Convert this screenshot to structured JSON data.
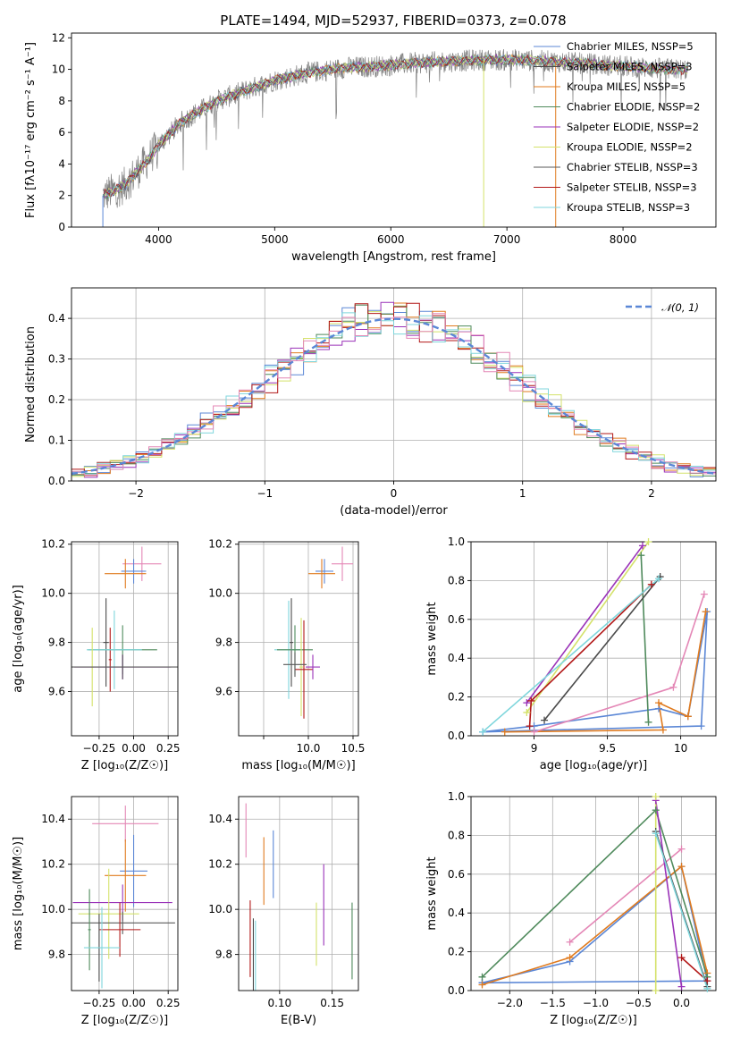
{
  "figure_title": "PLATE=1494, MJD=52937, FIBERID=0373, z=0.078",
  "series_styles": [
    {
      "name": "Chabrier MILES",
      "color": "#5b87d6"
    },
    {
      "name": "Salpeter MILES",
      "color": "#4a4a4a"
    },
    {
      "name": "Kroupa MILES",
      "color": "#e07b1f"
    },
    {
      "name": "Chabrier ELODIE",
      "color": "#4f8a5c"
    },
    {
      "name": "Salpeter ELODIE",
      "color": "#9a32b8"
    },
    {
      "name": "Kroupa ELODIE",
      "color": "#d4e26a"
    },
    {
      "name": "Chabrier STELIB",
      "color": "#5a5a5a"
    },
    {
      "name": "Salpeter STELIB",
      "color": "#b21818"
    },
    {
      "name": "Kroupa STELIB",
      "color": "#7fd6dc"
    },
    {
      "name": "extra",
      "color": "#e487b6"
    }
  ],
  "chart_data": [
    {
      "id": "spectrum",
      "type": "line",
      "xlabel": "wavelength [Angstrom, rest frame]",
      "ylabel": "Flux [fλ10⁻¹⁷ erg cm⁻² s⁻¹ A⁻¹]",
      "xlim": [
        3250,
        8800
      ],
      "ylim": [
        0,
        12.3
      ],
      "xticks": [
        4000,
        5000,
        6000,
        7000,
        8000
      ],
      "yticks": [
        0,
        2,
        4,
        6,
        8,
        10,
        12
      ],
      "grid": false,
      "legend_position": "top-right",
      "legend": [
        "Chabrier MILES, NSSP=5",
        "Salpeter MILES, NSSP=3",
        "Kroupa MILES, NSSP=5",
        "Chabrier ELODIE, NSSP=2",
        "Salpeter ELODIE, NSSP=2",
        "Kroupa ELODIE, NSSP=2",
        "Chabrier STELIB, NSSP=3",
        "Salpeter STELIB, NSSP=3",
        "Kroupa STELIB, NSSP=3"
      ],
      "continuum": {
        "x": [
          3520,
          3700,
          3900,
          4000,
          4200,
          4500,
          4800,
          5000,
          5300,
          5600,
          5900,
          6200,
          6500,
          6800,
          7100,
          7400,
          7600,
          7800,
          8000,
          8200,
          8400,
          8560
        ],
        "y": [
          2.0,
          2.6,
          4.2,
          5.2,
          6.7,
          8.0,
          8.8,
          9.3,
          9.8,
          10.1,
          10.2,
          10.4,
          10.5,
          10.6,
          10.6,
          10.5,
          10.4,
          10.3,
          10.2,
          10.1,
          10.0,
          10.0
        ]
      }
    },
    {
      "id": "residuals",
      "type": "line",
      "xlabel": "(data-model)/error",
      "ylabel": "Normed distribution",
      "xlim": [
        -2.5,
        2.5
      ],
      "ylim": [
        0,
        0.475
      ],
      "xticks": [
        -2,
        -1,
        0,
        1,
        2
      ],
      "yticks": [
        0.0,
        0.1,
        0.2,
        0.3,
        0.4
      ],
      "grid": true,
      "legend_position": "top-right",
      "legend": [
        "𝒩(0, 1)"
      ],
      "bins": [
        -2.5,
        -2.4,
        -2.3,
        -2.2,
        -2.1,
        -2.0,
        -1.9,
        -1.8,
        -1.7,
        -1.6,
        -1.5,
        -1.4,
        -1.3,
        -1.2,
        -1.1,
        -1.0,
        -0.9,
        -0.8,
        -0.7,
        -0.6,
        -0.5,
        -0.4,
        -0.3,
        -0.2,
        -0.1,
        0.0,
        0.1,
        0.2,
        0.3,
        0.4,
        0.5,
        0.6,
        0.7,
        0.8,
        0.9,
        1.0,
        1.1,
        1.2,
        1.3,
        1.4,
        1.5,
        1.6,
        1.7,
        1.8,
        1.9,
        2.0,
        2.1,
        2.2,
        2.3,
        2.4
      ]
    },
    {
      "id": "age-vs-Z",
      "type": "scatter",
      "xlabel": "Z [log₁₀(Z/Z☉)]",
      "ylabel": "age  [log₁₀(age/yr)]",
      "xlim": [
        -0.45,
        0.32
      ],
      "ylim": [
        9.42,
        10.21
      ],
      "xticks": [
        -0.25,
        0.0,
        0.25
      ],
      "xticklabels": [
        "−0.25",
        "0.00",
        "0.25"
      ],
      "yticks": [
        9.6,
        9.8,
        10.0,
        10.2
      ],
      "grid": true,
      "points": [
        {
          "s": 9,
          "x": 0.06,
          "y": 10.12,
          "xerr": 0.14,
          "yerr": 0.07
        },
        {
          "s": 0,
          "x": 0.0,
          "y": 10.09,
          "xerr": 0.09,
          "yerr": 0.05
        },
        {
          "s": 2,
          "x": -0.06,
          "y": 10.08,
          "xerr": 0.15,
          "yerr": 0.06
        },
        {
          "s": 1,
          "x": -0.2,
          "y": 9.8,
          "xerr": 0.02,
          "yerr": 0.18
        },
        {
          "s": 7,
          "x": -0.17,
          "y": 9.73,
          "xerr": 0.01,
          "yerr": 0.13
        },
        {
          "s": 3,
          "x": -0.08,
          "y": 9.77,
          "xerr": 0.25,
          "yerr": 0.1
        },
        {
          "s": 8,
          "x": -0.14,
          "y": 9.77,
          "xerr": 0.2,
          "yerr": 0.16
        },
        {
          "s": 5,
          "x": -0.3,
          "y": 9.7,
          "xerr": 0.01,
          "yerr": 0.16
        },
        {
          "s": 4,
          "x": -0.08,
          "y": 9.7,
          "xerr": 0.35,
          "yerr": 0.05
        },
        {
          "s": 6,
          "x": -0.08,
          "y": 9.7,
          "xerr": 0.44,
          "yerr": 0.05
        }
      ]
    },
    {
      "id": "age-vs-mass",
      "type": "scatter",
      "xlabel": "mass [log₁₀(M/M☉)]",
      "ylabel": "",
      "xlim": [
        9.22,
        10.56
      ],
      "ylim": [
        9.42,
        10.21
      ],
      "xticks": [
        9.5,
        10.0,
        10.5
      ],
      "xticklabels": [
        "",
        "10.0",
        "10.5"
      ],
      "yticks": [
        9.6,
        9.8,
        10.0,
        10.2
      ],
      "grid": true,
      "points": [
        {
          "s": 9,
          "x": 10.38,
          "y": 10.12,
          "xerr": 0.12,
          "yerr": 0.07
        },
        {
          "s": 0,
          "x": 10.18,
          "y": 10.09,
          "xerr": 0.1,
          "yerr": 0.05
        },
        {
          "s": 2,
          "x": 10.15,
          "y": 10.08,
          "xerr": 0.15,
          "yerr": 0.06
        },
        {
          "s": 1,
          "x": 9.81,
          "y": 9.8,
          "xerr": 0.02,
          "yerr": 0.18
        },
        {
          "s": 8,
          "x": 9.78,
          "y": 9.77,
          "xerr": 0.16,
          "yerr": 0.2
        },
        {
          "s": 3,
          "x": 9.85,
          "y": 9.77,
          "xerr": 0.2,
          "yerr": 0.1
        },
        {
          "s": 5,
          "x": 9.92,
          "y": 9.7,
          "xerr": 0.02,
          "yerr": 0.2
        },
        {
          "s": 7,
          "x": 9.95,
          "y": 9.69,
          "xerr": 0.1,
          "yerr": 0.2
        },
        {
          "s": 4,
          "x": 10.05,
          "y": 9.7,
          "xerr": 0.08,
          "yerr": 0.05
        },
        {
          "s": 6,
          "x": 9.85,
          "y": 9.71,
          "xerr": 0.13,
          "yerr": 0.05
        }
      ]
    },
    {
      "id": "massweight-vs-age",
      "type": "line",
      "xlabel": "age  [log₁₀(age/yr)]",
      "ylabel": "mass weight",
      "xlim": [
        8.57,
        10.24
      ],
      "ylim": [
        0,
        1
      ],
      "xticks": [
        9.0,
        9.5,
        10.0
      ],
      "yticks": [
        0.0,
        0.2,
        0.4,
        0.6,
        0.8,
        1.0
      ],
      "grid": true,
      "series": [
        {
          "s": 0,
          "x": [
            8.65,
            9.0,
            9.85,
            10.05,
            10.18,
            10.14,
            8.65
          ],
          "y": [
            0.02,
            0.05,
            0.14,
            0.1,
            0.64,
            0.05,
            0.02
          ]
        },
        {
          "s": 2,
          "x": [
            8.8,
            9.88,
            9.85,
            10.05,
            10.17
          ],
          "y": [
            0.02,
            0.03,
            0.17,
            0.1,
            0.64
          ]
        },
        {
          "s": 9,
          "x": [
            9.0,
            9.95,
            10.16
          ],
          "y": [
            0.02,
            0.25,
            0.73
          ]
        },
        {
          "s": 3,
          "x": [
            9.73,
            9.78
          ],
          "y": [
            0.93,
            0.07
          ]
        },
        {
          "s": 4,
          "x": [
            8.95,
            9.74
          ],
          "y": [
            0.17,
            0.98
          ]
        },
        {
          "s": 5,
          "x": [
            8.95,
            9.78
          ],
          "y": [
            0.12,
            1.0
          ]
        },
        {
          "s": 7,
          "x": [
            8.97,
            8.98,
            9.8
          ],
          "y": [
            0.05,
            0.18,
            0.78
          ]
        },
        {
          "s": 1,
          "x": [
            9.07,
            9.86
          ],
          "y": [
            0.08,
            0.82
          ]
        },
        {
          "s": 8,
          "x": [
            8.65,
            9.85
          ],
          "y": [
            0.02,
            0.81
          ]
        }
      ]
    },
    {
      "id": "mass-vs-Z",
      "type": "scatter",
      "xlabel": "Z [log₁₀(Z/Z☉)]",
      "ylabel": "mass [log₁₀(M/M☉)]",
      "xlim": [
        -0.45,
        0.32
      ],
      "ylim": [
        9.64,
        10.5
      ],
      "xticks": [
        -0.25,
        0.0,
        0.25
      ],
      "xticklabels": [
        "−0.25",
        "0.00",
        "0.25"
      ],
      "yticks": [
        9.8,
        10.0,
        10.2,
        10.4
      ],
      "grid": true,
      "points": [
        {
          "s": 9,
          "x": -0.06,
          "y": 10.38,
          "xerr": 0.24,
          "yerr": 0.08
        },
        {
          "s": 0,
          "x": 0.0,
          "y": 10.17,
          "xerr": 0.1,
          "yerr": 0.16
        },
        {
          "s": 2,
          "x": -0.06,
          "y": 10.15,
          "xerr": 0.15,
          "yerr": 0.16
        },
        {
          "s": 4,
          "x": -0.08,
          "y": 10.03,
          "xerr": 0.36,
          "yerr": 0.08
        },
        {
          "s": 5,
          "x": -0.18,
          "y": 9.98,
          "xerr": 0.22,
          "yerr": 0.2
        },
        {
          "s": 6,
          "x": -0.08,
          "y": 9.94,
          "xerr": 0.38,
          "yerr": 0.05
        },
        {
          "s": 7,
          "x": -0.1,
          "y": 9.91,
          "xerr": 0.15,
          "yerr": 0.12
        },
        {
          "s": 3,
          "x": -0.32,
          "y": 9.91,
          "xerr": 0.01,
          "yerr": 0.18
        },
        {
          "s": 1,
          "x": -0.25,
          "y": 9.83,
          "xerr": 0.01,
          "yerr": 0.15
        },
        {
          "s": 8,
          "x": -0.23,
          "y": 9.83,
          "xerr": 0.13,
          "yerr": 0.18
        }
      ]
    },
    {
      "id": "mass-vs-ebv",
      "type": "scatter",
      "xlabel": "E(B-V)",
      "ylabel": "",
      "xlim": [
        0.061,
        0.175
      ],
      "ylim": [
        9.64,
        10.5
      ],
      "xticks": [
        0.1,
        0.15
      ],
      "xticklabels": [
        "0.10",
        "0.15"
      ],
      "yticks": [
        9.8,
        10.0,
        10.2,
        10.4
      ],
      "grid": true,
      "points": [
        {
          "s": 9,
          "x": 0.068,
          "y": 10.35,
          "xerr": 0,
          "yerr": 0.12
        },
        {
          "s": 0,
          "x": 0.094,
          "y": 10.2,
          "xerr": 0,
          "yerr": 0.15
        },
        {
          "s": 2,
          "x": 0.085,
          "y": 10.17,
          "xerr": 0,
          "yerr": 0.15
        },
        {
          "s": 4,
          "x": 0.142,
          "y": 10.02,
          "xerr": 0,
          "yerr": 0.18
        },
        {
          "s": 5,
          "x": 0.135,
          "y": 9.89,
          "xerr": 0,
          "yerr": 0.14
        },
        {
          "s": 3,
          "x": 0.169,
          "y": 9.86,
          "xerr": 0,
          "yerr": 0.17
        },
        {
          "s": 7,
          "x": 0.072,
          "y": 9.87,
          "xerr": 0,
          "yerr": 0.17
        },
        {
          "s": 1,
          "x": 0.075,
          "y": 9.8,
          "xerr": 0,
          "yerr": 0.16
        },
        {
          "s": 8,
          "x": 0.077,
          "y": 9.79,
          "xerr": 0,
          "yerr": 0.16
        }
      ]
    },
    {
      "id": "massweight-vs-Z",
      "type": "line",
      "xlabel": "Z [log₁₀(Z/Z☉)]",
      "ylabel": "mass weight",
      "xlim": [
        -2.45,
        0.4
      ],
      "ylim": [
        0,
        1
      ],
      "xticks": [
        -2.0,
        -1.5,
        -1.0,
        -0.5,
        0.0
      ],
      "xticklabels": [
        "−2.0",
        "−1.5",
        "−1.0",
        "−0.5",
        "0.0"
      ],
      "yticks": [
        0.0,
        0.2,
        0.4,
        0.6,
        0.8,
        1.0
      ],
      "grid": true,
      "series": [
        {
          "s": 0,
          "x": [
            -2.32,
            -1.3,
            0.0,
            0.3,
            -2.32
          ],
          "y": [
            0.04,
            0.15,
            0.64,
            0.05,
            0.04
          ]
        },
        {
          "s": 2,
          "x": [
            -2.32,
            -1.3,
            0.0,
            0.3
          ],
          "y": [
            0.03,
            0.17,
            0.64,
            0.09
          ]
        },
        {
          "s": 9,
          "x": [
            -1.3,
            0.0
          ],
          "y": [
            0.25,
            0.73
          ]
        },
        {
          "s": 3,
          "x": [
            -2.32,
            -0.3,
            0.3
          ],
          "y": [
            0.07,
            0.93,
            0.07
          ]
        },
        {
          "s": 4,
          "x": [
            -0.3,
            0.0
          ],
          "y": [
            0.98,
            0.02
          ]
        },
        {
          "s": 5,
          "x": [
            -0.3,
            -0.3
          ],
          "y": [
            1.0,
            0.0
          ]
        },
        {
          "s": 7,
          "x": [
            0.0,
            0.3
          ],
          "y": [
            0.17,
            0.05
          ]
        },
        {
          "s": 1,
          "x": [
            -0.3,
            0.3
          ],
          "y": [
            0.82,
            0.02
          ]
        },
        {
          "s": 8,
          "x": [
            -0.3,
            0.3
          ],
          "y": [
            0.81,
            0.01
          ]
        }
      ]
    }
  ]
}
